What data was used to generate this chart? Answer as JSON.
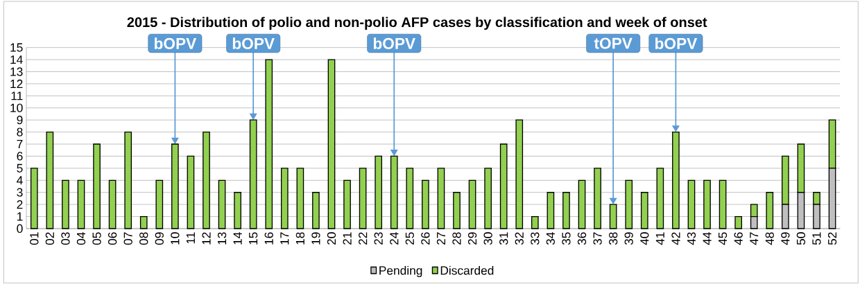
{
  "chart_data": {
    "type": "bar",
    "title": "2015 - Distribution of polio and non-polio AFP cases by classification and week of onset",
    "categories": [
      "01",
      "02",
      "03",
      "04",
      "05",
      "06",
      "07",
      "08",
      "09",
      "10",
      "11",
      "12",
      "13",
      "14",
      "15",
      "16",
      "17",
      "18",
      "19",
      "20",
      "21",
      "22",
      "23",
      "24",
      "25",
      "26",
      "27",
      "28",
      "29",
      "30",
      "31",
      "32",
      "33",
      "34",
      "35",
      "36",
      "37",
      "38",
      "39",
      "40",
      "41",
      "42",
      "43",
      "44",
      "45",
      "46",
      "47",
      "48",
      "49",
      "50",
      "51",
      "52"
    ],
    "stacked": true,
    "series": [
      {
        "name": "Pending",
        "color": "#bfbfbf",
        "values": [
          null,
          null,
          null,
          null,
          null,
          null,
          null,
          null,
          null,
          null,
          null,
          null,
          null,
          null,
          null,
          null,
          null,
          null,
          null,
          null,
          null,
          null,
          null,
          null,
          null,
          null,
          null,
          null,
          null,
          null,
          null,
          null,
          null,
          null,
          null,
          null,
          null,
          null,
          null,
          null,
          null,
          null,
          null,
          null,
          null,
          null,
          1,
          null,
          2,
          3,
          2,
          5
        ]
      },
      {
        "name": "Discarded",
        "color": "#92d050",
        "values": [
          5,
          8,
          4,
          4,
          7,
          4,
          8,
          1,
          4,
          7,
          6,
          8,
          4,
          3,
          9,
          14,
          5,
          5,
          3,
          14,
          4,
          5,
          6,
          6,
          5,
          4,
          5,
          3,
          4,
          5,
          7,
          9,
          1,
          3,
          3,
          4,
          5,
          2,
          4,
          3,
          5,
          8,
          4,
          4,
          4,
          1,
          1,
          3,
          4,
          4,
          1,
          4
        ]
      }
    ],
    "ylim": [
      0,
      15
    ],
    "yticks": [
      0,
      1,
      2,
      3,
      4,
      5,
      6,
      7,
      8,
      9,
      10,
      11,
      12,
      13,
      14,
      15
    ],
    "grid": "y",
    "legend": "bottom",
    "annotations": [
      {
        "text": "bOPV",
        "x": "10",
        "y": 7
      },
      {
        "text": "bOPV",
        "x": "15",
        "y": 9
      },
      {
        "text": "bOPV",
        "x": "24",
        "y": 6
      },
      {
        "text": "tOPV",
        "x": "38",
        "y": 2
      },
      {
        "text": "bOPV",
        "x": "42",
        "y": 8
      }
    ]
  }
}
